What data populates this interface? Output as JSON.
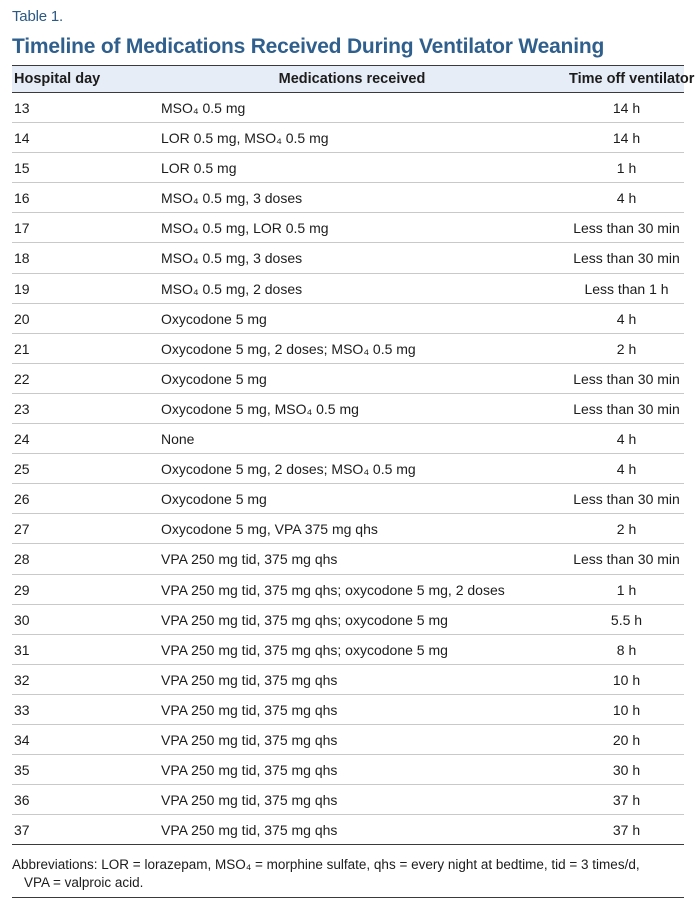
{
  "table": {
    "label": "Table 1.",
    "title": "Timeline of Medications Received During Ventilator Weaning",
    "headers": {
      "hospital_day": "Hospital day",
      "medications": "Medications received",
      "time_off": "Time off ventilator"
    },
    "rows": [
      {
        "day": "13",
        "meds": "MSO₄ 0.5 mg",
        "time": "14 h"
      },
      {
        "day": "14",
        "meds": "LOR 0.5 mg, MSO₄ 0.5 mg",
        "time": "14 h"
      },
      {
        "day": "15",
        "meds": "LOR 0.5 mg",
        "time": "1 h"
      },
      {
        "day": "16",
        "meds": "MSO₄ 0.5 mg, 3 doses",
        "time": "4 h"
      },
      {
        "day": "17",
        "meds": "MSO₄ 0.5 mg, LOR 0.5 mg",
        "time": "Less than 30 min"
      },
      {
        "day": "18",
        "meds": "MSO₄ 0.5 mg, 3 doses",
        "time": "Less than 30 min"
      },
      {
        "day": "19",
        "meds": "MSO₄ 0.5 mg, 2 doses",
        "time": "Less than 1 h"
      },
      {
        "day": "20",
        "meds": "Oxycodone 5 mg",
        "time": "4 h"
      },
      {
        "day": "21",
        "meds": "Oxycodone 5 mg, 2 doses; MSO₄ 0.5 mg",
        "time": "2 h"
      },
      {
        "day": "22",
        "meds": "Oxycodone 5 mg",
        "time": "Less than 30 min"
      },
      {
        "day": "23",
        "meds": "Oxycodone 5 mg, MSO₄ 0.5 mg",
        "time": "Less than 30 min"
      },
      {
        "day": "24",
        "meds": "None",
        "time": "4 h"
      },
      {
        "day": "25",
        "meds": "Oxycodone 5 mg, 2 doses; MSO₄ 0.5 mg",
        "time": "4 h"
      },
      {
        "day": "26",
        "meds": "Oxycodone 5 mg",
        "time": "Less than 30 min"
      },
      {
        "day": "27",
        "meds": "Oxycodone 5 mg, VPA 375 mg qhs",
        "time": "2 h"
      },
      {
        "day": "28",
        "meds": "VPA 250 mg tid, 375 mg qhs",
        "time": "Less than 30 min"
      },
      {
        "day": "29",
        "meds": "VPA 250 mg tid, 375 mg qhs; oxycodone 5 mg, 2 doses",
        "time": "1 h"
      },
      {
        "day": "30",
        "meds": "VPA 250 mg tid, 375 mg qhs; oxycodone 5 mg",
        "time": "5.5 h"
      },
      {
        "day": "31",
        "meds": "VPA 250 mg tid, 375 mg qhs; oxycodone 5 mg",
        "time": "8 h"
      },
      {
        "day": "32",
        "meds": "VPA 250 mg tid, 375 mg qhs",
        "time": "10 h"
      },
      {
        "day": "33",
        "meds": "VPA 250 mg tid, 375 mg qhs",
        "time": "10 h"
      },
      {
        "day": "34",
        "meds": "VPA 250 mg tid, 375 mg qhs",
        "time": "20 h"
      },
      {
        "day": "35",
        "meds": "VPA 250 mg tid, 375 mg qhs",
        "time": "30 h"
      },
      {
        "day": "36",
        "meds": "VPA 250 mg tid, 375 mg qhs",
        "time": "37 h"
      },
      {
        "day": "37",
        "meds": "VPA 250 mg tid, 375 mg qhs",
        "time": "37 h"
      }
    ],
    "footnote_line1": "Abbreviations: LOR = lorazepam, MSO₄ = morphine sulfate, qhs = every night at bedtime, tid = 3 times/d,",
    "footnote_line2": "VPA = valproic acid."
  },
  "colors": {
    "title": "#2f5f8d",
    "header_bg": "#e6edf6",
    "rule": "#3a3a3a",
    "row_rule": "#c9c9c9"
  }
}
